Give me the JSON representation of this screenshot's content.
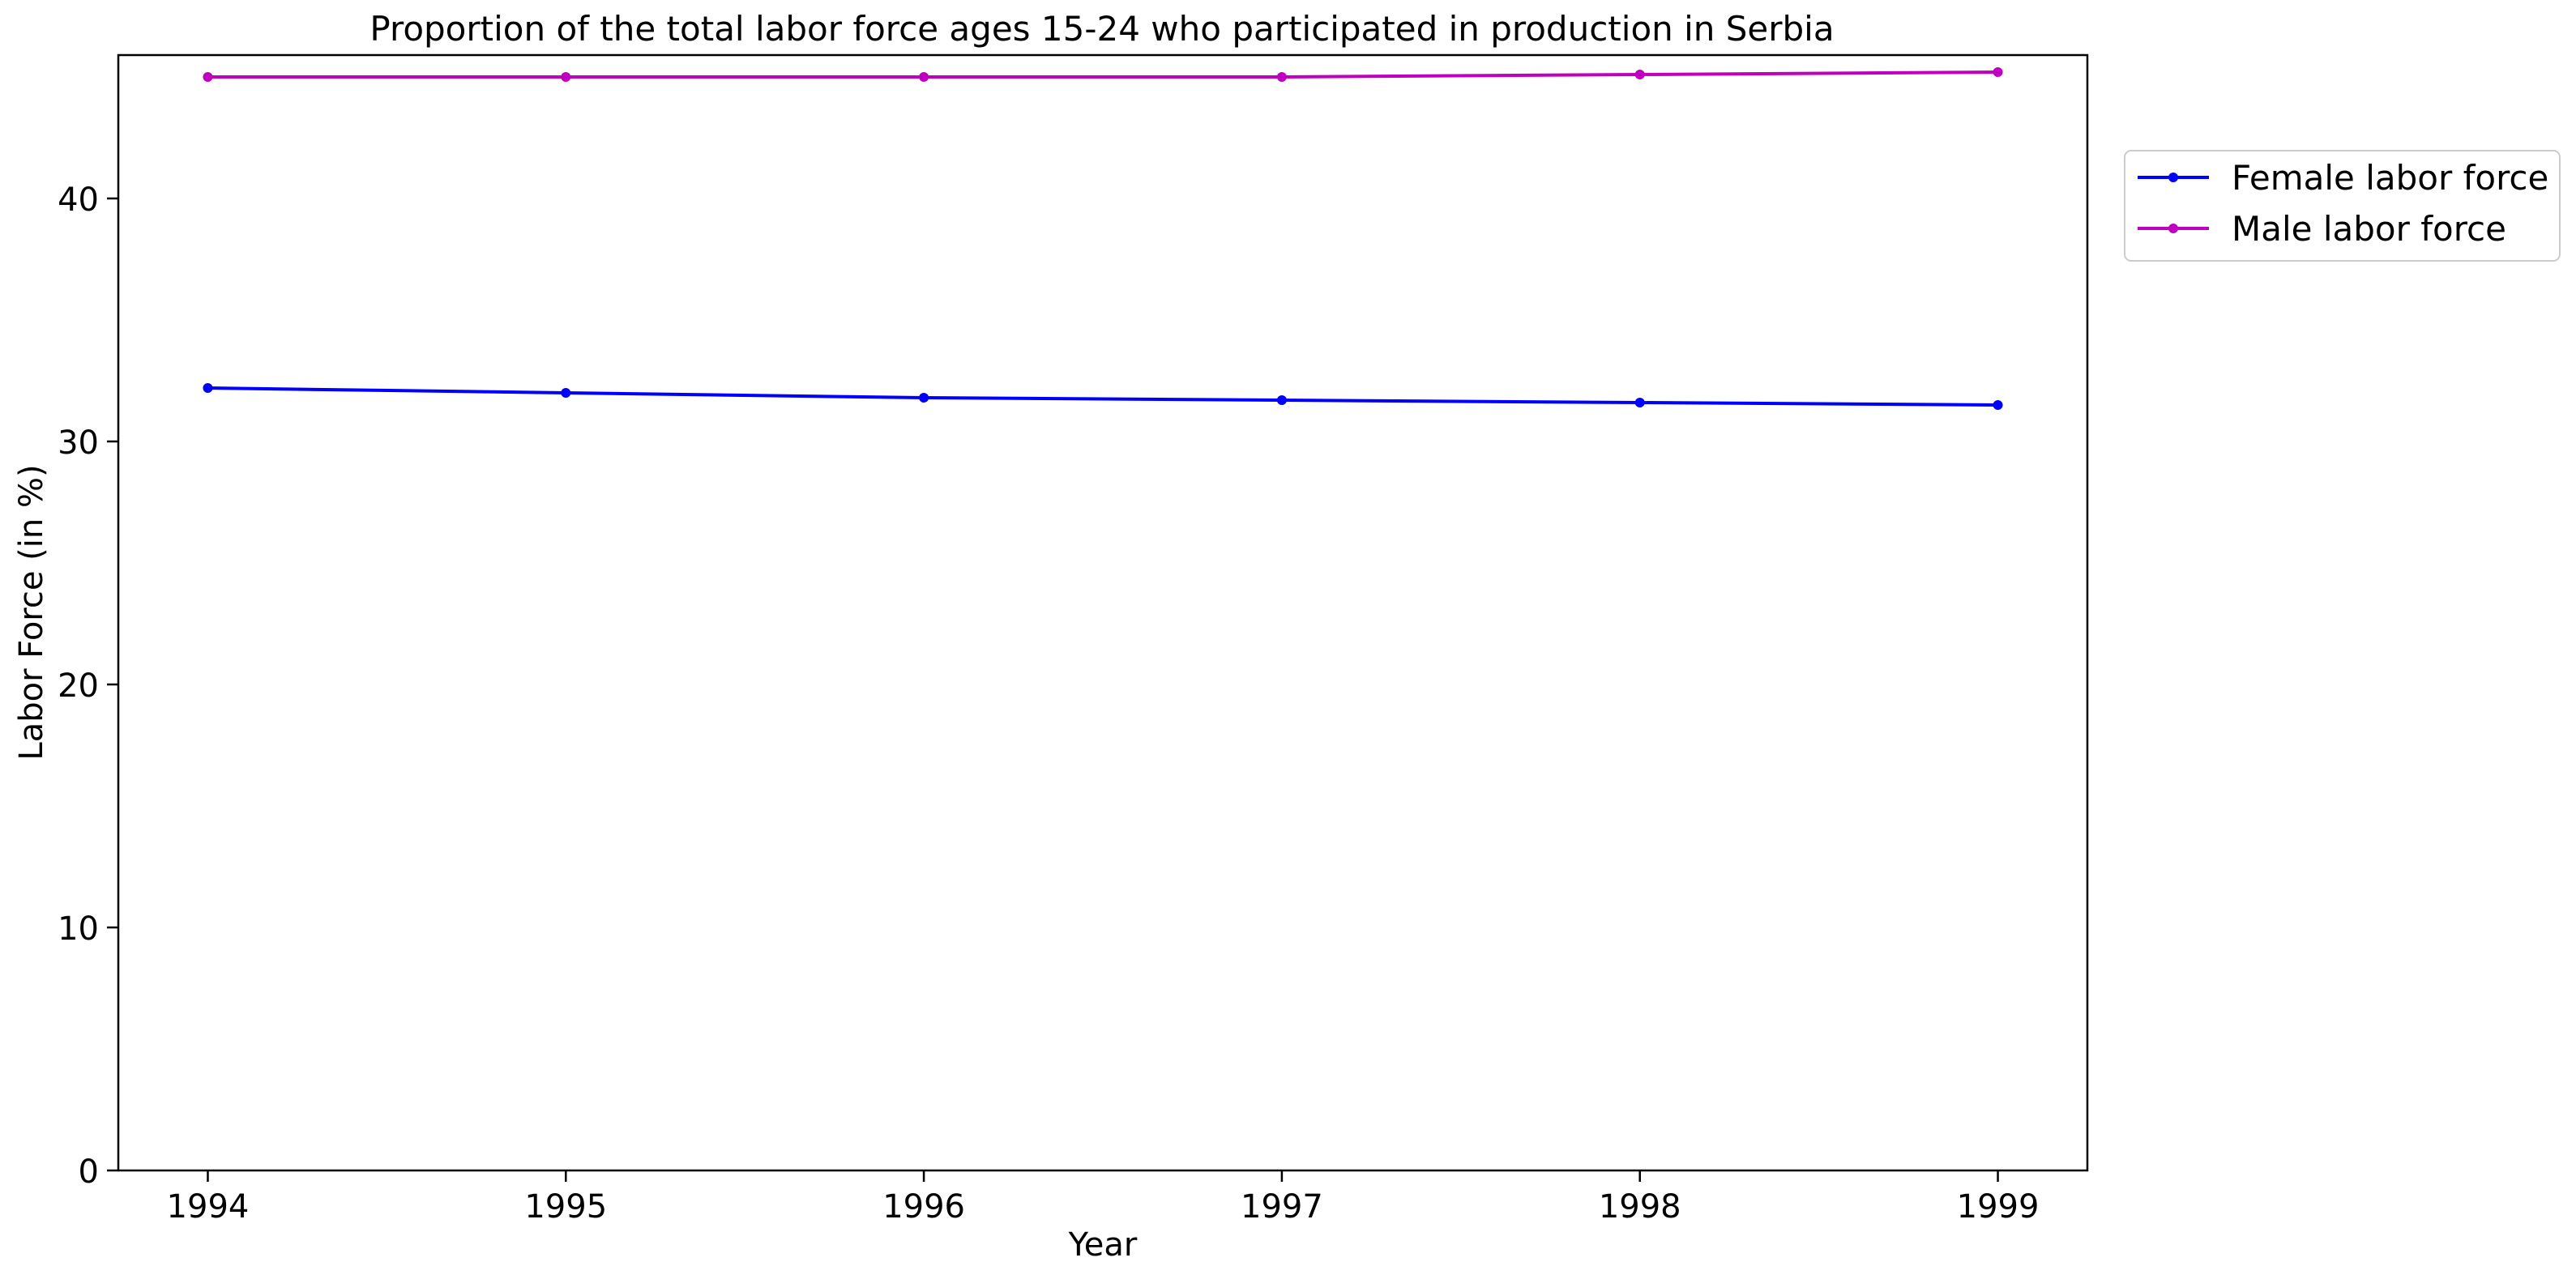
{
  "chart_data": {
    "type": "line",
    "title": "Proportion of the total labor force ages 15-24 who participated in production in Serbia",
    "xlabel": "Year",
    "ylabel": "Labor Force (in %)",
    "x": [
      1994,
      1995,
      1996,
      1997,
      1998,
      1999
    ],
    "x_ticks": [
      "1994",
      "1995",
      "1996",
      "1997",
      "1998",
      "1999"
    ],
    "y_ticks": [
      "0",
      "10",
      "20",
      "30",
      "40"
    ],
    "ylim": [
      0,
      45.9
    ],
    "xlim": [
      1993.75,
      1999.25
    ],
    "grid": false,
    "legend_position": "upper-right-outside",
    "series": [
      {
        "name": "Female labor force",
        "color": "#0000ff",
        "values": [
          32.2,
          32.0,
          31.8,
          31.7,
          31.6,
          31.5
        ]
      },
      {
        "name": "Male labor force",
        "color": "#bf00bf",
        "values": [
          45.0,
          45.0,
          45.0,
          45.0,
          45.1,
          45.2
        ]
      }
    ]
  }
}
